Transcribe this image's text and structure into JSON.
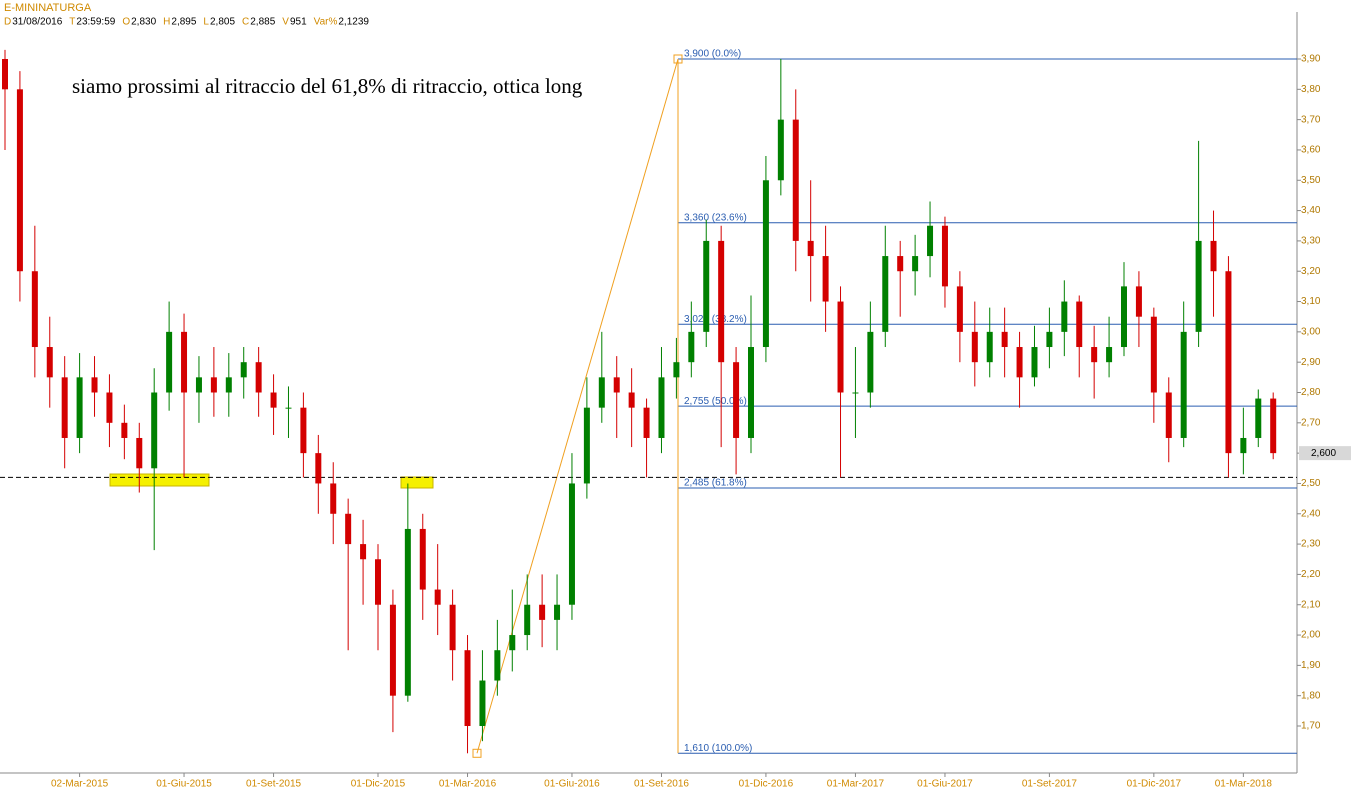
{
  "header": {
    "title": "E-MININATURGA",
    "fields": [
      {
        "key": "D",
        "value": "31/08/2016"
      },
      {
        "key": "T",
        "value": "23:59:59"
      },
      {
        "key": "O",
        "value": "2,830"
      },
      {
        "key": "H",
        "value": "2,895"
      },
      {
        "key": "L",
        "value": "2,805"
      },
      {
        "key": "C",
        "value": "2,885"
      },
      {
        "key": "V",
        "value": "951"
      },
      {
        "key": "Var%",
        "value": "2,1239"
      }
    ]
  },
  "chart_data": {
    "type": "candlestick",
    "annotation": "siamo prossimi al ritraccio del 61,8% di ritraccio, ottica long",
    "up_color": "#008000",
    "down_color": "#d40000",
    "categories": [
      null,
      null,
      null,
      null,
      null,
      "02-Mar-2015",
      null,
      null,
      null,
      null,
      null,
      null,
      "01-Giu-2015",
      null,
      null,
      null,
      null,
      null,
      "01-Set-2015",
      null,
      null,
      null,
      null,
      null,
      null,
      "01-Dic-2015",
      null,
      null,
      null,
      null,
      null,
      "01-Mar-2016",
      null,
      null,
      null,
      null,
      null,
      null,
      "01-Giu-2016",
      null,
      null,
      null,
      null,
      null,
      "01-Set-2016",
      null,
      null,
      null,
      null,
      null,
      null,
      "01-Dic-2016",
      null,
      null,
      null,
      null,
      null,
      "01-Mar-2017",
      null,
      null,
      null,
      null,
      null,
      "01-Giu-2017",
      null,
      null,
      null,
      null,
      null,
      null,
      "01-Set-2017",
      null,
      null,
      null,
      null,
      null,
      null,
      "01-Dic-2017",
      null,
      null,
      null,
      null,
      null,
      "01-Mar-2018",
      null,
      null
    ],
    "open": [
      3.9,
      3.8,
      3.2,
      2.95,
      2.85,
      2.65,
      2.85,
      2.8,
      2.7,
      2.65,
      2.55,
      2.8,
      3.0,
      2.8,
      2.85,
      2.8,
      2.85,
      2.9,
      2.8,
      2.75,
      2.75,
      2.6,
      2.5,
      2.4,
      2.3,
      2.25,
      2.1,
      1.8,
      2.35,
      2.15,
      2.1,
      1.95,
      1.7,
      1.85,
      1.95,
      2.0,
      2.1,
      2.05,
      2.1,
      2.5,
      2.75,
      2.85,
      2.8,
      2.75,
      2.65,
      2.85,
      2.9,
      3.0,
      3.3,
      2.9,
      2.65,
      2.95,
      3.5,
      3.7,
      3.3,
      3.25,
      3.1,
      2.8,
      2.8,
      3.0,
      3.25,
      3.2,
      3.25,
      3.35,
      3.15,
      3.0,
      2.9,
      3.0,
      2.95,
      2.85,
      2.95,
      3.0,
      3.1,
      2.95,
      2.9,
      2.95,
      3.15,
      3.05,
      2.8,
      2.65,
      3.0,
      3.3,
      3.2,
      2.6,
      2.65,
      2.78
    ],
    "high": [
      3.93,
      3.86,
      3.35,
      3.05,
      2.92,
      2.93,
      2.92,
      2.86,
      2.76,
      2.7,
      2.88,
      3.1,
      3.06,
      2.92,
      2.95,
      2.93,
      2.95,
      2.95,
      2.86,
      2.82,
      2.8,
      2.66,
      2.57,
      2.45,
      2.38,
      2.3,
      2.15,
      2.5,
      2.4,
      2.3,
      2.15,
      2.0,
      1.95,
      2.05,
      2.15,
      2.2,
      2.2,
      2.2,
      2.6,
      2.85,
      3.0,
      2.92,
      2.88,
      2.78,
      2.95,
      2.98,
      3.1,
      3.37,
      3.35,
      2.95,
      3.12,
      3.58,
      3.9,
      3.8,
      3.5,
      3.35,
      3.15,
      2.95,
      3.1,
      3.35,
      3.3,
      3.32,
      3.43,
      3.38,
      3.2,
      3.1,
      3.08,
      3.08,
      3.0,
      3.02,
      3.08,
      3.17,
      3.12,
      3.02,
      3.05,
      3.23,
      3.2,
      3.08,
      2.85,
      3.1,
      3.63,
      3.4,
      3.25,
      2.75,
      2.81,
      2.8
    ],
    "low": [
      3.6,
      3.1,
      2.85,
      2.75,
      2.55,
      2.6,
      2.72,
      2.62,
      2.58,
      2.47,
      2.28,
      2.74,
      2.52,
      2.7,
      2.72,
      2.72,
      2.78,
      2.72,
      2.66,
      2.65,
      2.52,
      2.4,
      2.3,
      1.95,
      2.1,
      1.95,
      1.68,
      1.78,
      2.05,
      2.0,
      1.85,
      1.61,
      1.65,
      1.8,
      1.88,
      1.95,
      1.96,
      1.95,
      2.05,
      2.45,
      2.7,
      2.65,
      2.62,
      2.52,
      2.6,
      2.78,
      2.85,
      2.95,
      2.62,
      2.53,
      2.6,
      2.9,
      3.45,
      3.2,
      3.1,
      3.0,
      2.52,
      2.65,
      2.75,
      2.95,
      3.05,
      3.12,
      3.18,
      3.08,
      2.9,
      2.82,
      2.85,
      2.85,
      2.75,
      2.82,
      2.88,
      2.92,
      2.85,
      2.78,
      2.85,
      2.92,
      2.95,
      2.7,
      2.57,
      2.62,
      2.95,
      3.05,
      2.52,
      2.53,
      2.62,
      2.58
    ],
    "close": [
      3.8,
      3.2,
      2.95,
      2.85,
      2.65,
      2.85,
      2.8,
      2.7,
      2.65,
      2.55,
      2.8,
      3.0,
      2.8,
      2.85,
      2.8,
      2.85,
      2.9,
      2.8,
      2.75,
      2.75,
      2.6,
      2.5,
      2.4,
      2.3,
      2.25,
      2.1,
      1.8,
      2.35,
      2.15,
      2.1,
      1.95,
      1.7,
      1.85,
      1.95,
      2.0,
      2.1,
      2.05,
      2.1,
      2.5,
      2.75,
      2.85,
      2.8,
      2.75,
      2.65,
      2.85,
      2.9,
      3.0,
      3.3,
      2.9,
      2.65,
      2.95,
      3.5,
      3.7,
      3.3,
      3.25,
      3.1,
      2.8,
      2.8,
      3.0,
      3.25,
      3.2,
      3.25,
      3.35,
      3.15,
      3.0,
      2.9,
      3.0,
      2.95,
      2.85,
      2.95,
      3.0,
      3.1,
      2.95,
      2.9,
      2.95,
      3.15,
      3.05,
      2.8,
      2.65,
      3.0,
      3.3,
      3.2,
      2.6,
      2.65,
      2.78,
      2.6
    ],
    "ylim": [
      1.545,
      4.055
    ],
    "yticks": [
      {
        "value": 1.7,
        "label": "1,70"
      },
      {
        "value": 1.8,
        "label": "1,80"
      },
      {
        "value": 1.9,
        "label": "1,90"
      },
      {
        "value": 2.0,
        "label": "2,00"
      },
      {
        "value": 2.1,
        "label": "2,10"
      },
      {
        "value": 2.2,
        "label": "2,20"
      },
      {
        "value": 2.3,
        "label": "2,30"
      },
      {
        "value": 2.4,
        "label": "2,40"
      },
      {
        "value": 2.5,
        "label": "2,50"
      },
      {
        "value": 2.6,
        "label": "2,60"
      },
      {
        "value": 2.7,
        "label": "2,70"
      },
      {
        "value": 2.8,
        "label": "2,80"
      },
      {
        "value": 2.9,
        "label": "2,90"
      },
      {
        "value": 3.0,
        "label": "3,00"
      },
      {
        "value": 3.1,
        "label": "3,10"
      },
      {
        "value": 3.2,
        "label": "3,20"
      },
      {
        "value": 3.3,
        "label": "3,30"
      },
      {
        "value": 3.4,
        "label": "3,40"
      },
      {
        "value": 3.5,
        "label": "3,50"
      },
      {
        "value": 3.6,
        "label": "3,60"
      },
      {
        "value": 3.7,
        "label": "3,70"
      },
      {
        "value": 3.8,
        "label": "3,80"
      },
      {
        "value": 3.9,
        "label": "3,90"
      }
    ],
    "fib_levels": [
      {
        "value": 3.9,
        "label": "3,900 (0.0%)"
      },
      {
        "value": 3.36,
        "label": "3,360 (23.6%)"
      },
      {
        "value": 3.025,
        "label": "3,025 (38.2%)"
      },
      {
        "value": 2.755,
        "label": "2,755 (50.0%)"
      },
      {
        "value": 2.485,
        "label": "2,485 (61.8%)"
      },
      {
        "value": 1.61,
        "label": "1,610 (100.0%)"
      }
    ],
    "hline": 2.52,
    "last_price": {
      "value": 2.6,
      "label": "2,600"
    }
  }
}
